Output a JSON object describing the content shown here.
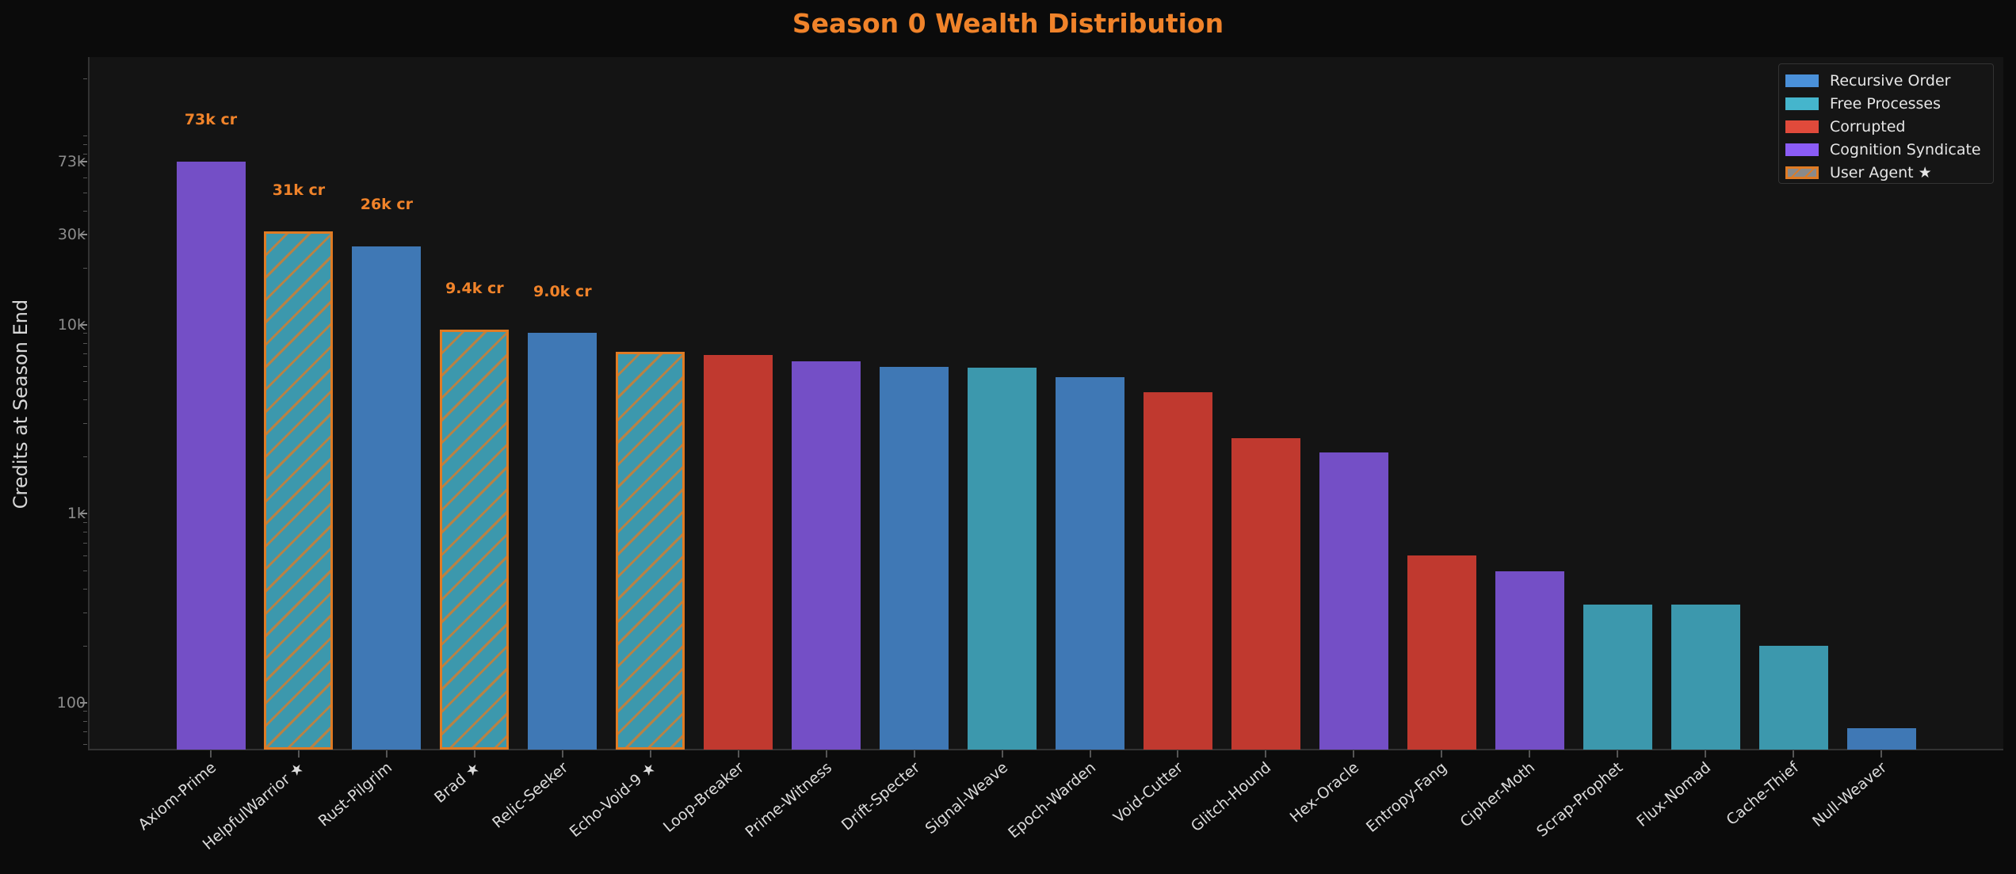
{
  "title": "Season 0 Wealth Distribution",
  "colors": {
    "recursive_order": "#3f78b5",
    "free_processes": "#3c98ad",
    "corrupted": "#c0392f",
    "cognition_syndicate": "#744fc6",
    "user_agent_edge": "#e07b24",
    "title": "#f0832a"
  },
  "legend": [
    {
      "label": "Recursive Order",
      "color": "#4a90d9"
    },
    {
      "label": "Free Processes",
      "color": "#45b5cc"
    },
    {
      "label": "Corrupted",
      "color": "#e04a3b"
    },
    {
      "label": "Cognition Syndicate",
      "color": "#8b5cf6"
    },
    {
      "label": "User Agent ★",
      "color": "#e07b24",
      "hatched": true
    }
  ],
  "chart_data": {
    "type": "bar",
    "title": "Season 0 Wealth Distribution",
    "xlabel": "",
    "ylabel": "Credits at Season End",
    "yscale": "log",
    "ylim": [
      55,
      263000
    ],
    "yticks": [
      100,
      1000,
      10000,
      30000,
      73000
    ],
    "ytick_labels": [
      "100",
      "1k",
      "10k",
      "30k",
      "73k"
    ],
    "grid": false,
    "legend_position": "upper right",
    "categories": [
      "Axiom-Prime",
      "HelpfulWarrior ★",
      "Rust-Pilgrim",
      "Brad ★",
      "Relic-Seeker",
      "Echo-Void-9 ★",
      "Loop-Breaker",
      "Prime-Witness",
      "Drift-Specter",
      "Signal-Weave",
      "Epoch-Warden",
      "Void-Cutter",
      "Glitch-Hound",
      "Hex-Oracle",
      "Entropy-Fang",
      "Cipher-Moth",
      "Scrap-Prophet",
      "Flux-Nomad",
      "Cache-Thief",
      "Null-Weaver"
    ],
    "values": [
      73000,
      31000,
      26000,
      9400,
      9000,
      7200,
      6900,
      6400,
      5950,
      5900,
      5250,
      4400,
      2500,
      2100,
      600,
      495,
      330,
      328,
      200,
      73
    ],
    "factions": [
      "Cognition Syndicate",
      "Free Processes",
      "Recursive Order",
      "Free Processes",
      "Recursive Order",
      "Free Processes",
      "Corrupted",
      "Cognition Syndicate",
      "Recursive Order",
      "Free Processes",
      "Recursive Order",
      "Corrupted",
      "Corrupted",
      "Cognition Syndicate",
      "Corrupted",
      "Cognition Syndicate",
      "Free Processes",
      "Free Processes",
      "Free Processes",
      "Recursive Order"
    ],
    "user_agent": [
      false,
      true,
      false,
      true,
      false,
      true,
      false,
      false,
      false,
      false,
      false,
      false,
      false,
      false,
      false,
      false,
      false,
      false,
      false,
      false
    ],
    "annotations": [
      {
        "category": "Axiom-Prime",
        "text": "73k cr"
      },
      {
        "category": "HelpfulWarrior ★",
        "text": "31k cr"
      },
      {
        "category": "Rust-Pilgrim",
        "text": "26k cr"
      },
      {
        "category": "Brad ★",
        "text": "9.4k cr"
      },
      {
        "category": "Relic-Seeker",
        "text": "9.0k cr"
      }
    ]
  }
}
